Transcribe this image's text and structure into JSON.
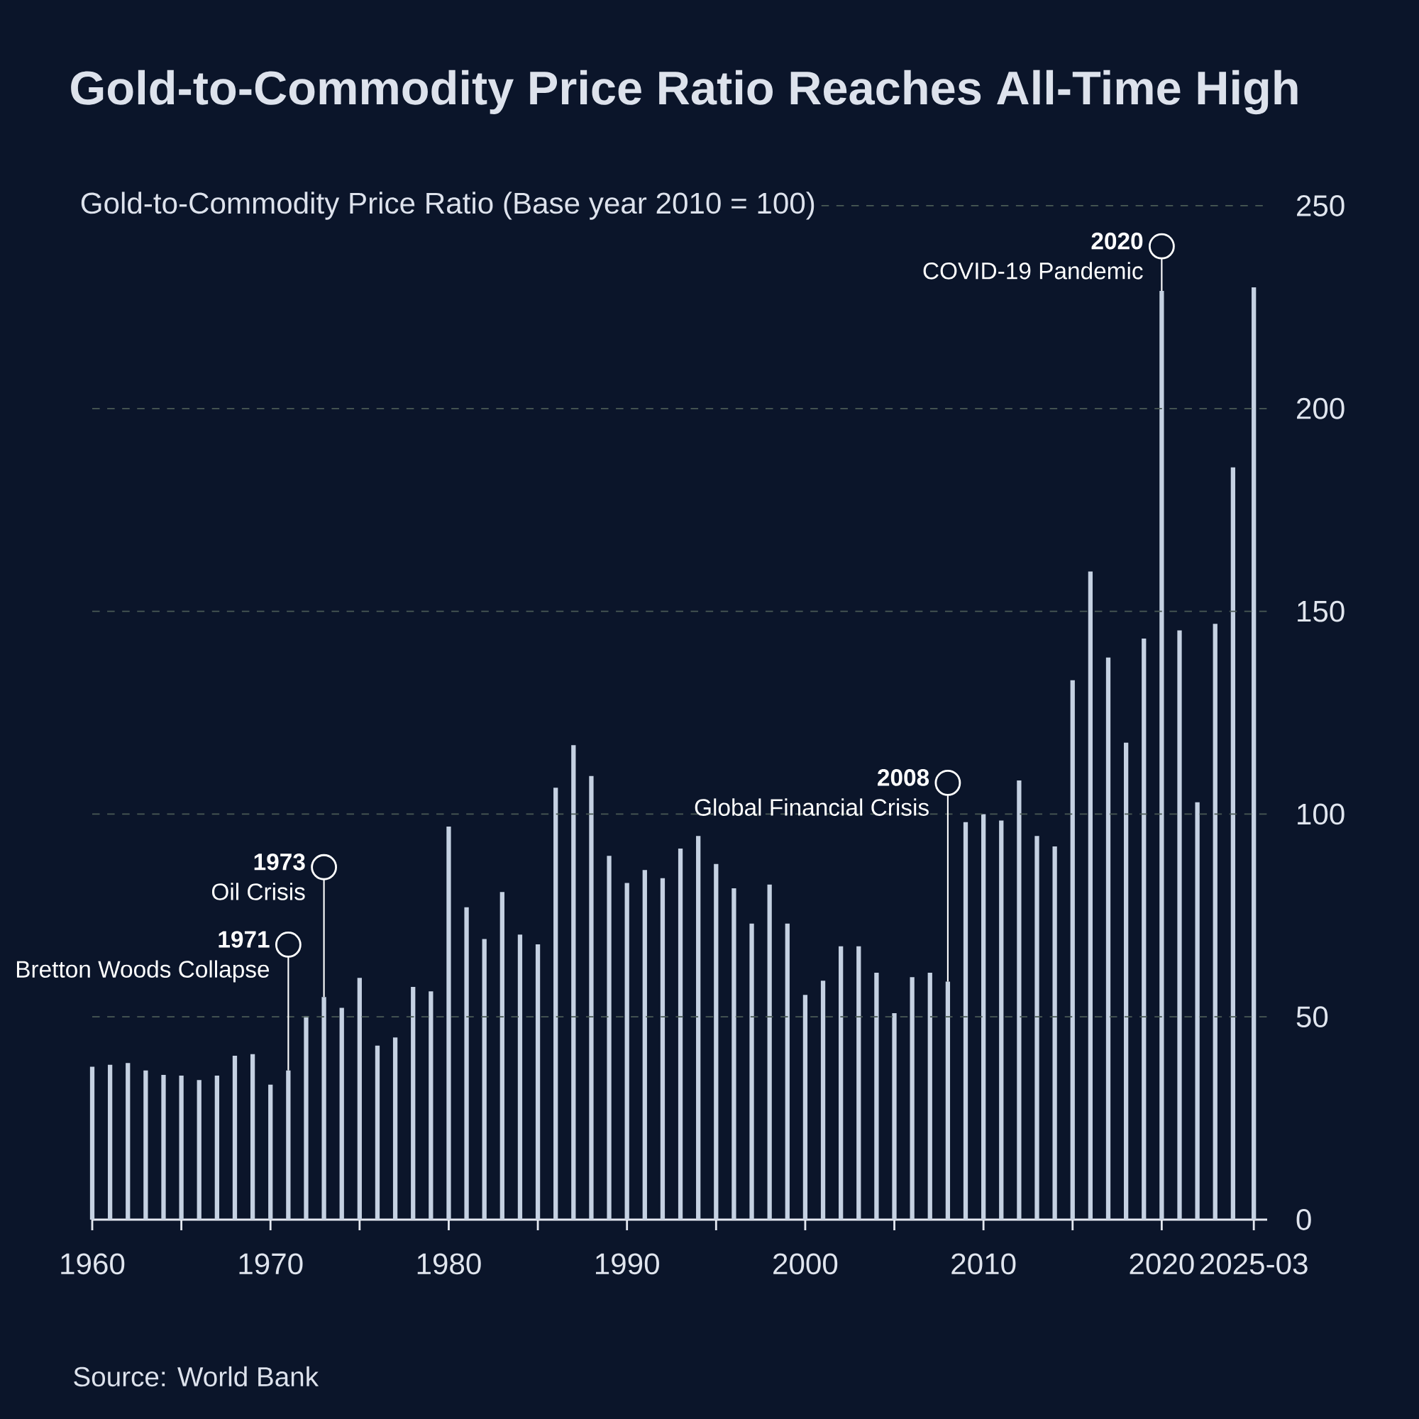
{
  "chart_data": {
    "type": "bar",
    "title": "Gold-to-Commodity Price Ratio Reaches All-Time High",
    "ylabel": "Gold-to-Commodity Price Ratio (Base year 2010 = 100)",
    "x": [
      "1960",
      "1961",
      "1962",
      "1963",
      "1964",
      "1965",
      "1966",
      "1967",
      "1968",
      "1969",
      "1970",
      "1971",
      "1972",
      "1973",
      "1974",
      "1975",
      "1976",
      "1977",
      "1978",
      "1979",
      "1980",
      "1981",
      "1982",
      "1983",
      "1984",
      "1985",
      "1986",
      "1987",
      "1988",
      "1989",
      "1990",
      "1991",
      "1992",
      "1993",
      "1994",
      "1995",
      "1996",
      "1997",
      "1998",
      "1999",
      "2000",
      "2001",
      "2002",
      "2003",
      "2004",
      "2005",
      "2006",
      "2007",
      "2008",
      "2009",
      "2010",
      "2011",
      "2012",
      "2013",
      "2014",
      "2015",
      "2016",
      "2017",
      "2018",
      "2019",
      "2020",
      "2021",
      "2022",
      "2023",
      "2024",
      "2025-03"
    ],
    "values": [
      37.7,
      38.2,
      38.6,
      36.8,
      35.7,
      35.5,
      34.4,
      35.5,
      40.4,
      40.8,
      33.3,
      36.8,
      50.2,
      54.9,
      52.2,
      59.6,
      42.9,
      44.9,
      57.4,
      56.3,
      96.9,
      77,
      69.2,
      80.8,
      70.3,
      67.9,
      106.5,
      117,
      109.4,
      89.7,
      83,
      86.2,
      84.2,
      91.5,
      94.6,
      87.7,
      81.7,
      73,
      82.6,
      73,
      55.4,
      58.9,
      67.4,
      67.4,
      60.9,
      50.9,
      59.8,
      60.9,
      58.7,
      98,
      100,
      98.4,
      108.3,
      94.6,
      92,
      133,
      159.8,
      138.6,
      117.6,
      143.3,
      229,
      145.3,
      102.9,
      146.9,
      185.5,
      229.9
    ],
    "color": "#c5d1e2",
    "xlim": [
      "1960",
      "2025-12"
    ],
    "xticks": [
      {
        "value": "1960",
        "label": "1960"
      },
      {
        "value": "1965",
        "label": null
      },
      {
        "value": "1970",
        "label": "1970"
      },
      {
        "value": "1975",
        "label": null
      },
      {
        "value": "1980",
        "label": "1980"
      },
      {
        "value": "1985",
        "label": null
      },
      {
        "value": "1990",
        "label": "1990"
      },
      {
        "value": "1995",
        "label": null
      },
      {
        "value": "2000",
        "label": "2000"
      },
      {
        "value": "2005",
        "label": null
      },
      {
        "value": "2010",
        "label": "2010"
      },
      {
        "value": "2015",
        "label": null
      },
      {
        "value": "2020",
        "label": "2020"
      },
      {
        "value": "2025-03",
        "label": "2025-03"
      }
    ],
    "ylim": [
      0,
      250
    ],
    "yticks": [
      0,
      50,
      100,
      150,
      200,
      250
    ],
    "grid": "y",
    "annotations": [
      {
        "text": "1971",
        "x": "1971",
        "y": 36.8
      },
      {
        "text": "Bretton Woods Collapse",
        "x": "1971",
        "y": 36.8
      },
      {
        "text": "1973",
        "x": "1973",
        "y": 54.9
      },
      {
        "text": "Oil Crisis",
        "x": "1973",
        "y": 54.9
      },
      {
        "text": "2008",
        "x": "2008",
        "y": 58.7
      },
      {
        "text": "Global Financial Crisis",
        "x": "2008",
        "y": 58.7
      },
      {
        "text": "2020",
        "x": "2020",
        "y": 229
      },
      {
        "text": "COVID-19 Pandemic",
        "x": "2020",
        "y": 229
      },
      "Source: World Bank"
    ]
  }
}
